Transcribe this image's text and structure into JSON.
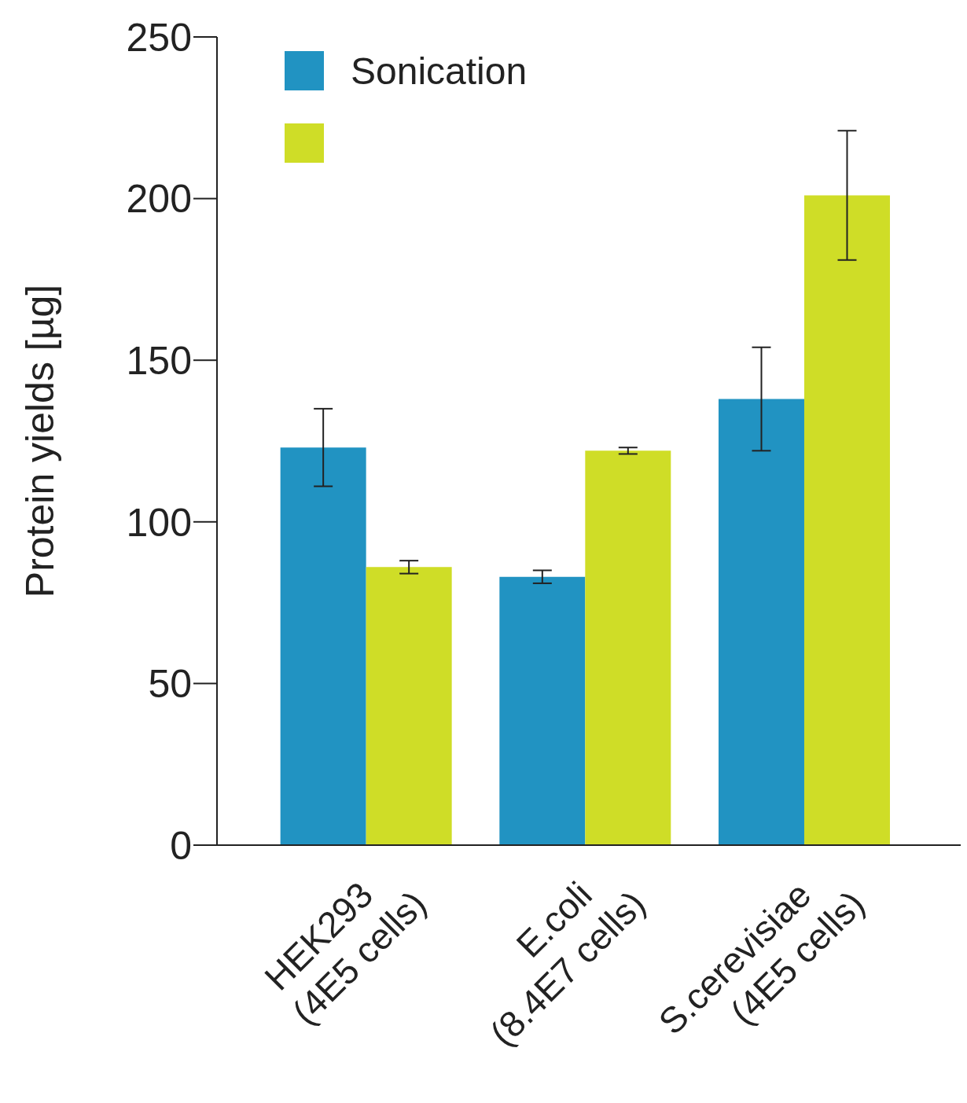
{
  "chart_data": {
    "type": "bar",
    "ylabel": "Protein yields [µg]",
    "categories": [
      "HEK293\n(4E5 cells)",
      "E.coli\n(8.4E7 cells)",
      "S.cerevisiae\n(4E5 cells)"
    ],
    "series": [
      {
        "name": "Sonication",
        "color": "#2193c2",
        "values": [
          123,
          83,
          138
        ],
        "errors": [
          12,
          2,
          16
        ]
      },
      {
        "color": "#cfdd27",
        "values": [
          86,
          122,
          201
        ],
        "errors": [
          2,
          1,
          20
        ]
      }
    ],
    "ylim": [
      0,
      250
    ],
    "yticks": [
      0,
      50,
      100,
      150,
      200,
      250
    ],
    "grid": false,
    "legend": "top left"
  }
}
